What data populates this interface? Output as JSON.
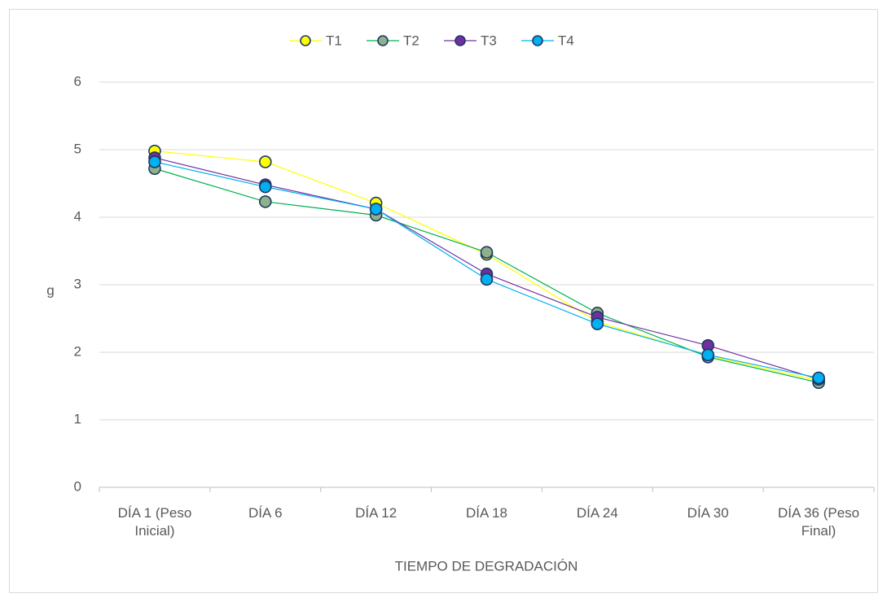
{
  "chart_data": {
    "type": "line",
    "y_label": "g",
    "x_label": "TIEMPO DE DEGRADACIÓN",
    "categories": [
      "DÍA 1 (Peso Inicial)",
      "DÍA 6",
      "DÍA 12",
      "DÍA 18",
      "DÍA 24",
      "DÍA 30",
      "DÍA 36 (Peso Final)"
    ],
    "series": [
      {
        "name": "T1",
        "color": "#ffff00",
        "marker_color": "#ffff00",
        "values": [
          4.98,
          4.82,
          4.21,
          3.45,
          2.45,
          1.95,
          1.58
        ]
      },
      {
        "name": "T2",
        "color": "#00b050",
        "marker_color": "#8fb08a",
        "values": [
          4.72,
          4.23,
          4.03,
          3.48,
          2.58,
          1.93,
          1.55
        ]
      },
      {
        "name": "T3",
        "color": "#7030a0",
        "marker_color": "#7030a0",
        "values": [
          4.88,
          4.48,
          4.12,
          3.16,
          2.52,
          2.1,
          1.6
        ]
      },
      {
        "name": "T4",
        "color": "#00b0f0",
        "marker_color": "#00b0f0",
        "values": [
          4.82,
          4.45,
          4.12,
          3.08,
          2.42,
          1.96,
          1.62
        ]
      }
    ],
    "ylim": [
      0,
      6
    ],
    "yticks": [
      0,
      1,
      2,
      3,
      4,
      5,
      6
    ],
    "grid": true,
    "legend": "top"
  }
}
